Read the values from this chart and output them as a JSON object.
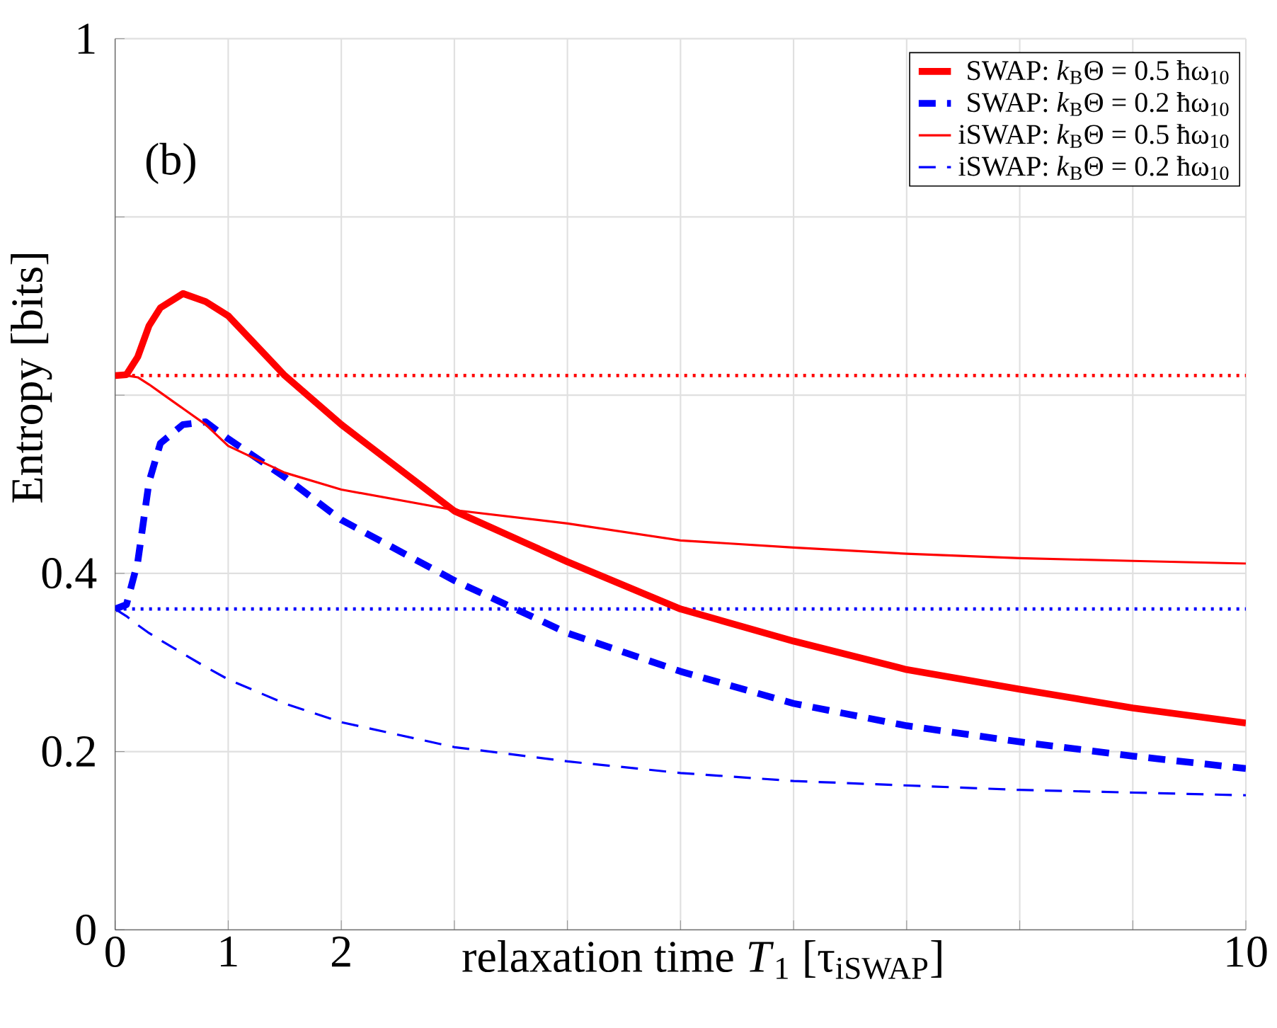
{
  "chart_data": {
    "type": "line",
    "xlabel": "relaxation time *T*$_{1}$ [τ$_{iSWAP}$]",
    "ylabel": "Entropy [bits]",
    "annotations": [
      "(b)"
    ],
    "x": [
      0,
      0.1,
      0.2,
      0.3,
      0.4,
      0.6,
      0.8,
      1,
      1.5,
      2,
      3,
      4,
      5,
      6,
      7,
      8,
      9,
      10
    ],
    "series": [
      {
        "name": "SWAP: *k*$_{B}$Θ = 0.5 ħω$_{10}$",
        "color": "#ff0000",
        "line_style": "solid",
        "values": [
          0.622,
          0.623,
          0.643,
          0.678,
          0.698,
          0.714,
          0.705,
          0.689,
          0.622,
          0.567,
          0.47,
          0.413,
          0.36,
          0.324,
          0.292,
          0.27,
          0.249,
          0.232
        ]
      },
      {
        "name": "SWAP: *k*$_{B}$Θ = 0.2 ħω$_{10}$",
        "color": "#0000ff",
        "line_style": "dashed",
        "values": [
          0.36,
          0.365,
          0.413,
          0.503,
          0.546,
          0.567,
          0.57,
          0.551,
          0.508,
          0.46,
          0.392,
          0.333,
          0.29,
          0.254,
          0.229,
          0.211,
          0.195,
          0.181
        ]
      },
      {
        "name": "iSWAP: *k*$_{B}$Θ = 0.5 ħω$_{10}$",
        "color": "#ff0000",
        "line_style": "solid",
        "values": [
          0.622,
          0.622,
          0.62,
          0.612,
          0.603,
          0.585,
          0.567,
          0.543,
          0.513,
          0.494,
          0.471,
          0.456,
          0.437,
          0.429,
          0.422,
          0.417,
          0.414,
          0.411
        ]
      },
      {
        "name": "iSWAP: *k*$_{B}$Θ = 0.2 ħω$_{10}$",
        "color": "#0000ff",
        "line_style": "dashed",
        "values": [
          0.36,
          0.352,
          0.342,
          0.333,
          0.325,
          0.31,
          0.295,
          0.281,
          0.254,
          0.233,
          0.205,
          0.189,
          0.176,
          0.167,
          0.162,
          0.157,
          0.154,
          0.151
        ]
      }
    ],
    "ref_lines": [
      {
        "axis": "y",
        "value": 0.622,
        "color": "#ff0000",
        "line_style": "dotted"
      },
      {
        "axis": "y",
        "value": 0.36,
        "color": "#0000ff",
        "line_style": "dotted"
      }
    ],
    "xlim": [
      0,
      10
    ],
    "xticks": [
      0,
      1,
      2,
      {
        "value": 3,
        "label": null
      },
      {
        "value": 4,
        "label": null
      },
      {
        "value": 5,
        "label": null
      },
      {
        "value": 6,
        "label": null
      },
      {
        "value": 7,
        "label": null
      },
      {
        "value": 8,
        "label": null
      },
      {
        "value": 9,
        "label": null
      },
      10
    ],
    "ylim": [
      0,
      1
    ],
    "yticks": [
      0,
      0.2,
      0.4,
      {
        "value": 0.6,
        "label": null
      },
      {
        "value": 0.8,
        "label": null
      },
      1
    ],
    "grid": true,
    "legend": "top right"
  }
}
